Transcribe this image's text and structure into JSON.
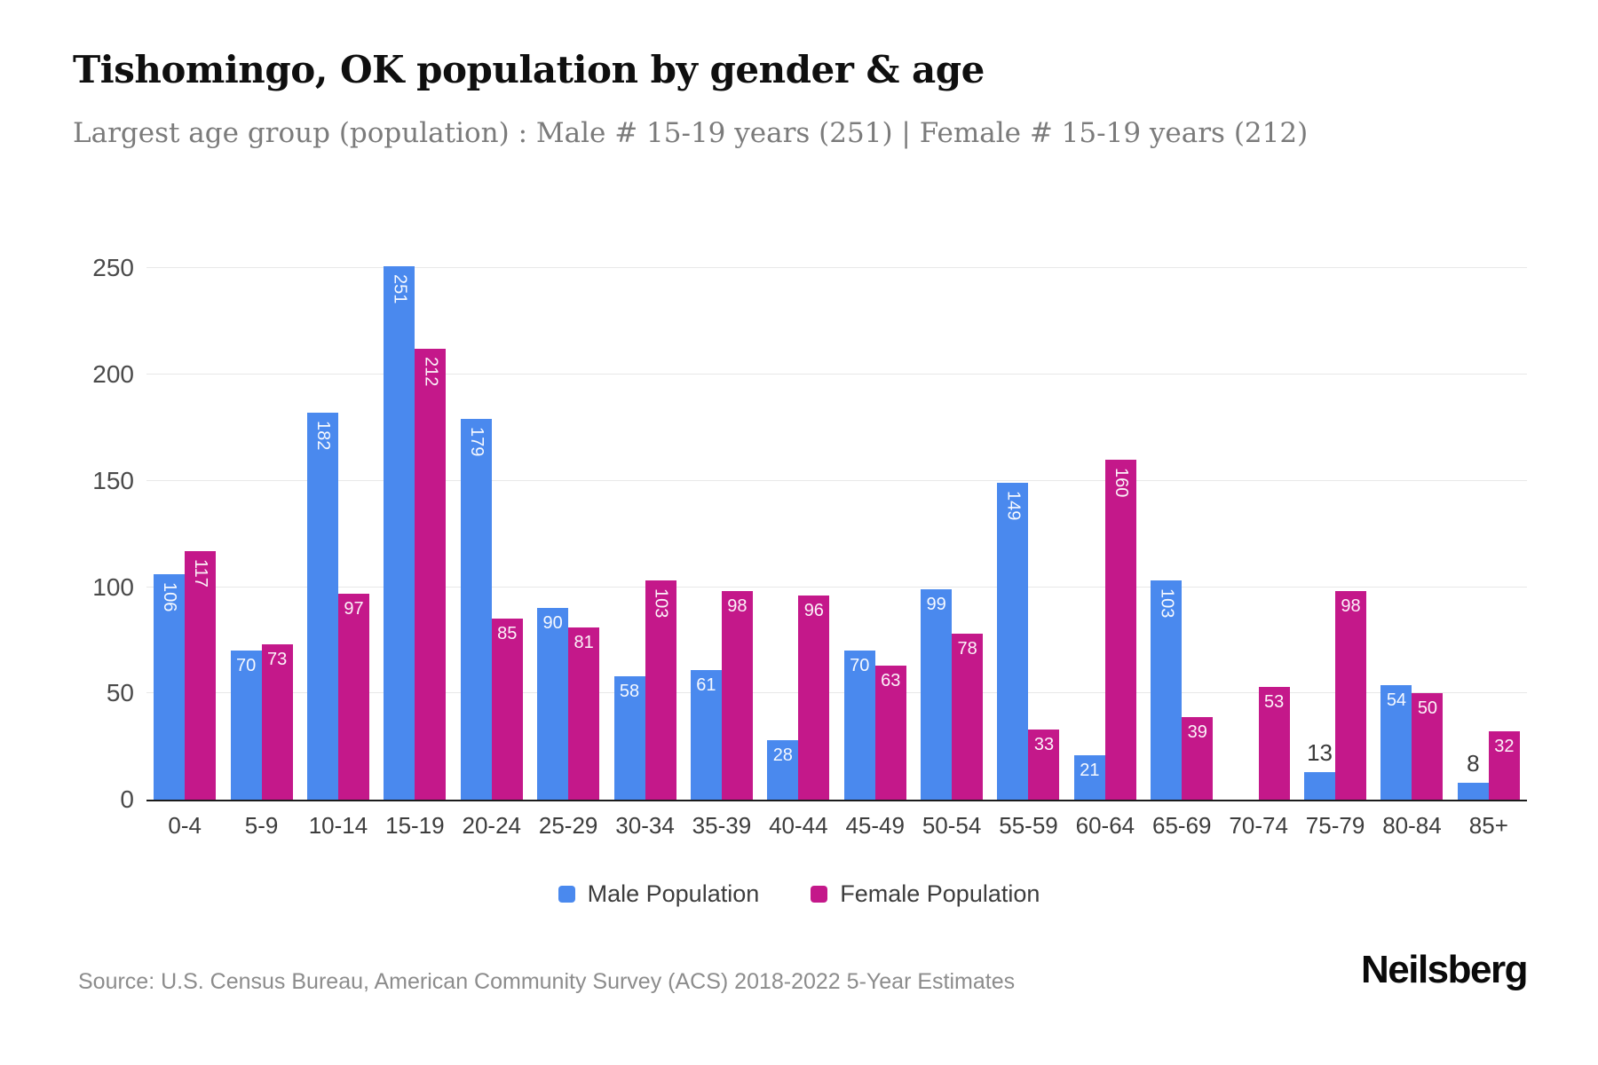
{
  "page": {
    "title": "Tishomingo, OK population by gender & age",
    "subtitle": "Largest age group (population) : Male # 15-19 years (251) | Female # 15-19 years (212)",
    "source": "Source: U.S. Census Bureau, American Community Survey (ACS) 2018-2022 5-Year Estimates",
    "brand": "Neilsberg"
  },
  "legend": {
    "male_label": "Male Population",
    "female_label": "Female Population"
  },
  "colors": {
    "male": "#4a89ee",
    "female": "#c4188a",
    "gridline": "#e8e8e8",
    "axis": "#1c1c1c",
    "inside_label": "#ffffff",
    "outside_label": "#3a3a3a"
  },
  "chart_data": {
    "type": "bar",
    "title": "Tishomingo, OK population by gender & age",
    "categories": [
      "0-4",
      "5-9",
      "10-14",
      "15-19",
      "20-24",
      "25-29",
      "30-34",
      "35-39",
      "40-44",
      "45-49",
      "50-54",
      "55-59",
      "60-64",
      "65-69",
      "70-74",
      "75-79",
      "80-84",
      "85+"
    ],
    "series": [
      {
        "name": "Male Population",
        "color": "#4a89ee",
        "values": [
          106,
          70,
          182,
          251,
          179,
          90,
          58,
          61,
          28,
          70,
          99,
          149,
          21,
          103,
          0,
          13,
          54,
          8
        ]
      },
      {
        "name": "Female Population",
        "color": "#c4188a",
        "values": [
          117,
          73,
          97,
          212,
          85,
          81,
          103,
          98,
          96,
          63,
          78,
          33,
          160,
          39,
          53,
          98,
          50,
          32
        ]
      }
    ],
    "xlabel": "",
    "ylabel": "",
    "yticks": [
      0,
      50,
      100,
      150,
      200,
      250
    ],
    "ylim": [
      0,
      256
    ],
    "grid": "horizontal",
    "legend_position": "bottom"
  }
}
